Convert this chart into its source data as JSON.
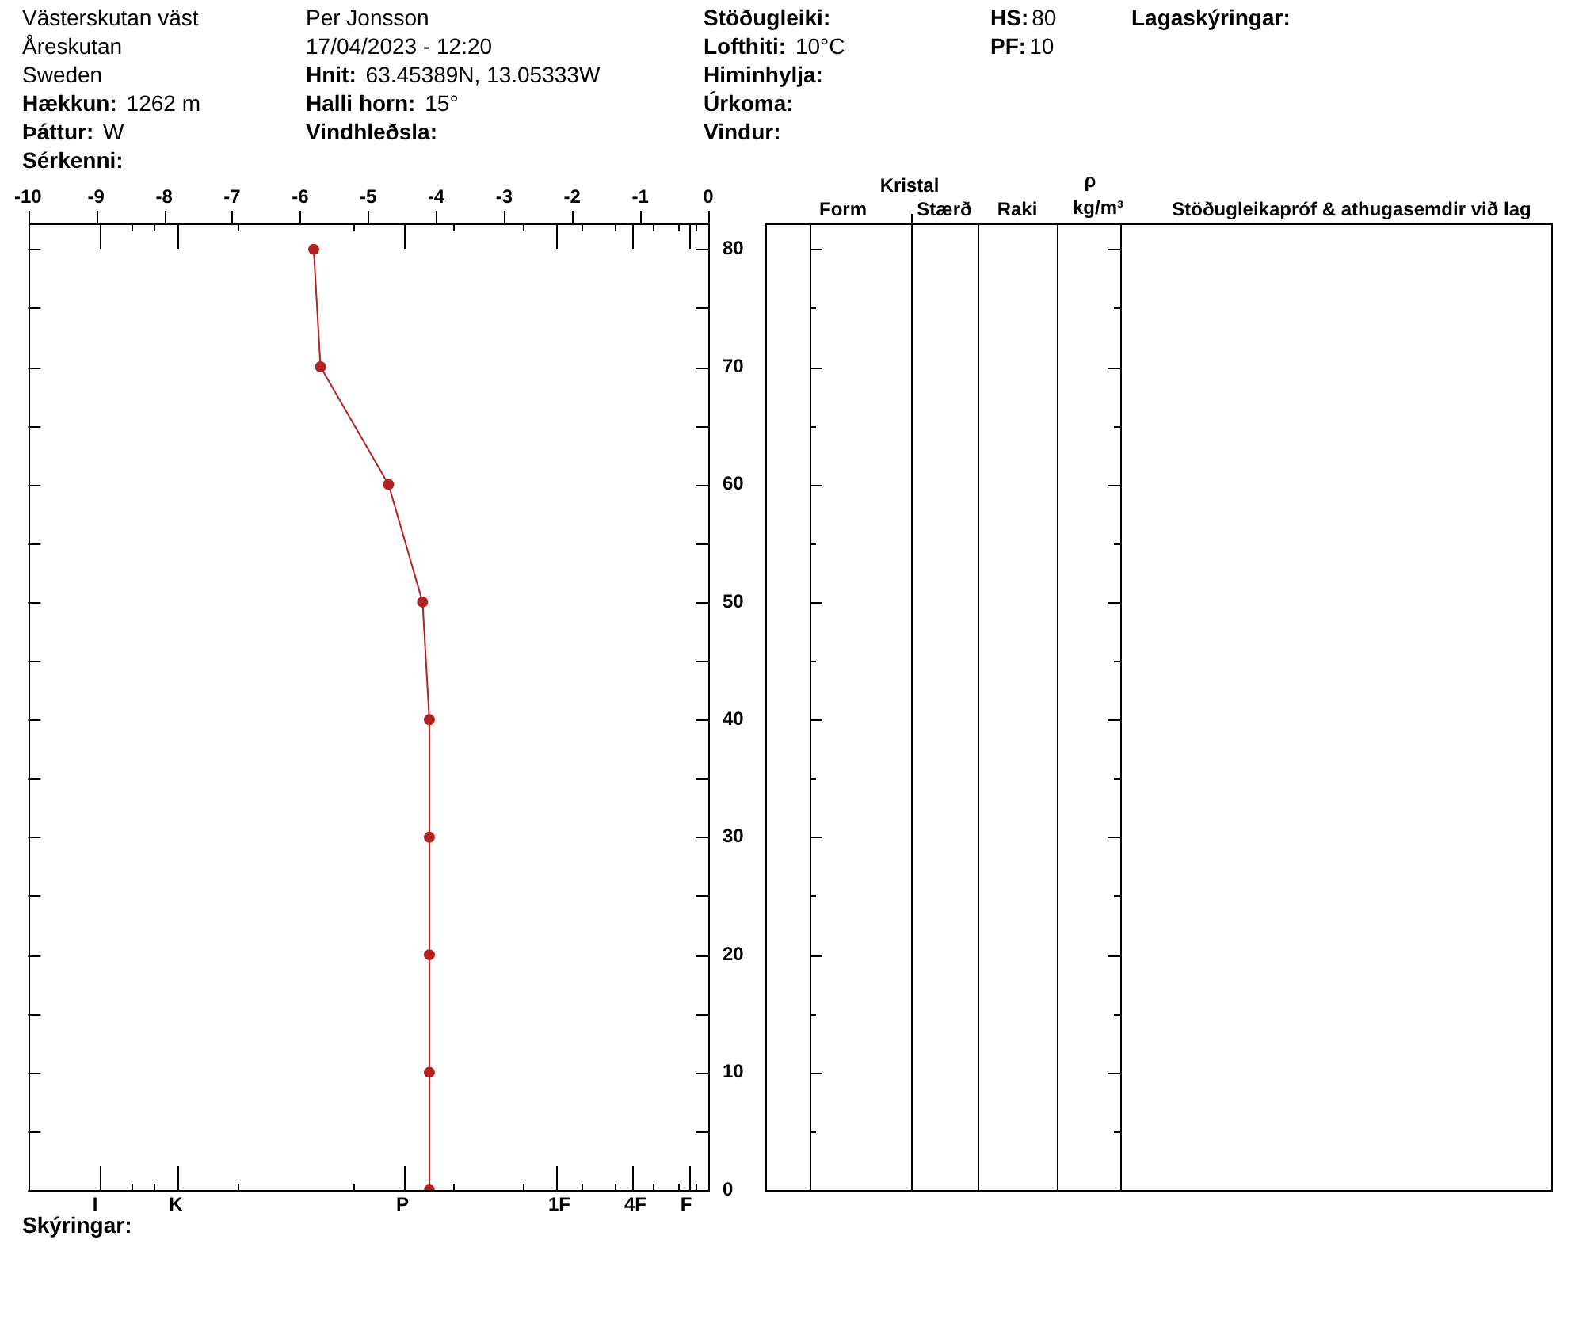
{
  "chart_data": {
    "type": "line",
    "annotations": [
      "Västerskutan väst",
      "Åreskutan",
      "Sweden",
      "Hækkun: 1262 m",
      "Þáttur: W",
      "Sérkenni:",
      "Per Jonsson",
      "17/04/2023 - 12:20",
      "Hnit: 63.45389N, 13.05333W",
      "Halli horn: 15°",
      "Vindhleðsla:",
      "Stöðugleiki:",
      "Lofthiti: 10°C",
      "Himinhylja:",
      "Úrkoma:",
      "Vindur:",
      "HS:80",
      "PF:10",
      "Lagaskýringar:",
      "Skýringar:",
      "Kristal",
      "Form",
      "Stærð",
      "Raki",
      "ρ",
      "kg/m³",
      "Stöðugleikapróf & athugasemdir við lag",
      "I",
      "K",
      "P",
      "1F",
      "4F",
      "F"
    ],
    "x": [
      -5.8,
      -5.7,
      -4.7,
      -4.2,
      -4.1,
      -4.1,
      -4.1,
      -4.1,
      -4.1
    ],
    "values": [
      80,
      70,
      60,
      50,
      40,
      30,
      20,
      10,
      0
    ],
    "color": "#b22222",
    "xlim": [
      -10,
      0
    ],
    "xticks": [
      -10,
      -9,
      -8,
      -7,
      -6,
      -5,
      -4,
      -3,
      -2,
      -1,
      0
    ],
    "ylim": [
      0,
      82.2
    ],
    "yticks": [
      0,
      {
        "value": 5,
        "label": null
      },
      10,
      {
        "value": 15,
        "label": null
      },
      20,
      {
        "value": 25,
        "label": null
      },
      30,
      {
        "value": 35,
        "label": null
      },
      40,
      {
        "value": 45,
        "label": null
      },
      50,
      {
        "value": 55,
        "label": null
      },
      60,
      {
        "value": 65,
        "label": null
      },
      70,
      {
        "value": 75,
        "label": null
      },
      80
    ],
    "marker": "circle",
    "line_style": "solid"
  }
}
